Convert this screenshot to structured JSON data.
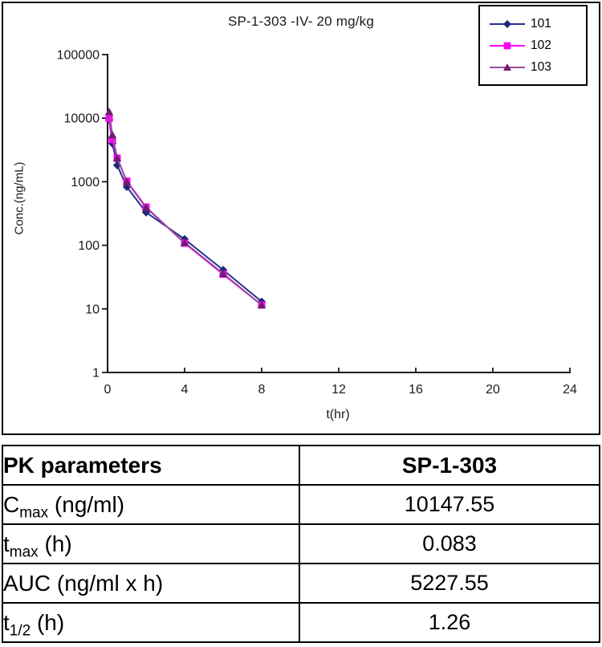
{
  "chart_data": {
    "type": "line",
    "title": "SP-1-303 -IV- 20 mg/kg",
    "xlabel": "t(hr)",
    "ylabel": "Conc.(ng/mL)",
    "y_scale": "log",
    "xlim": [
      0,
      24
    ],
    "ylim": [
      1,
      100000
    ],
    "x_ticks": [
      0,
      4,
      8,
      12,
      16,
      20,
      24
    ],
    "y_ticks": [
      1,
      10,
      100,
      1000,
      10000,
      100000
    ],
    "grid": false,
    "legend_position": "top-right",
    "x": [
      0.083,
      0.25,
      0.5,
      1,
      2,
      4,
      6,
      8
    ],
    "series": [
      {
        "name": "101",
        "marker": "diamond",
        "color": "#262F8F",
        "marker_color": "#1F2878",
        "values": [
          9500,
          4000,
          1820,
          830,
          330,
          125,
          41,
          13
        ]
      },
      {
        "name": "102",
        "marker": "square",
        "color": "#FF00FF",
        "marker_color": "#FF00FF",
        "values": [
          9900,
          4600,
          2350,
          1020,
          400,
          108,
          35,
          11.5
        ]
      },
      {
        "name": "103",
        "marker": "triangle",
        "color": "#994D99",
        "marker_color": "#701C70",
        "values": [
          12600,
          5450,
          2350,
          1000,
          390,
          110,
          36,
          11.5
        ]
      }
    ]
  },
  "table": {
    "header": [
      "PK parameters",
      "SP-1-303"
    ],
    "rows": [
      {
        "pre": "C",
        "sub": "max",
        "post": " (ng/ml)",
        "value": "10147.55"
      },
      {
        "pre": "t",
        "sub": "max",
        "post": " (h)",
        "value": "0.083"
      },
      {
        "pre": "AUC (ng/ml x h)",
        "sub": "",
        "post": "",
        "value": "5227.55"
      },
      {
        "pre": "t",
        "sub": "1/2",
        "post": " (h)",
        "value": "1.26"
      }
    ]
  },
  "colors": {
    "axis": "#000000",
    "tick_text": "#1a1a1a"
  }
}
